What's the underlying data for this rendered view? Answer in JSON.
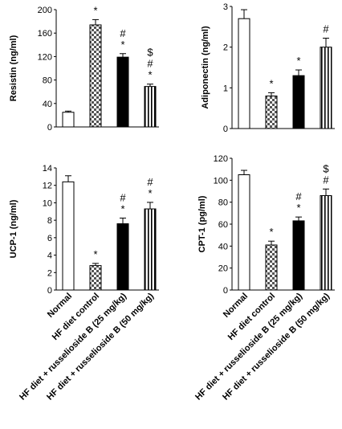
{
  "categories": [
    "Normal",
    "HF diet control",
    "HF diet + russelioside B (25 mg/kg)",
    "HF diet + russelioside B (50 mg/kg)"
  ],
  "legend_patterns": [
    "white",
    "checkered",
    "black",
    "vertical-stripes"
  ],
  "chart_data": [
    {
      "type": "bar",
      "title": "",
      "xlabel": "",
      "ylabel": "Resistin (ng/ml)",
      "ylim": [
        0,
        200
      ],
      "yticks": [
        0,
        40,
        80,
        120,
        160,
        200
      ],
      "categories": [
        "Normal",
        "HF diet control",
        "HF diet + russelioside B (25 mg/kg)",
        "HF diet + russelioside B (50 mg/kg)"
      ],
      "values": [
        25,
        174,
        119,
        69
      ],
      "errors": [
        2,
        9,
        6,
        4
      ],
      "significance": [
        [],
        [
          "*"
        ],
        [
          "#",
          "*"
        ],
        [
          "$",
          "#",
          "*"
        ]
      ]
    },
    {
      "type": "bar",
      "title": "",
      "xlabel": "",
      "ylabel": "Adiponectin (ng/ml)",
      "ylim": [
        0,
        3
      ],
      "yticks": [
        0,
        1,
        2,
        3
      ],
      "categories": [
        "Normal",
        "HF diet control",
        "HF diet + russelioside B (25 mg/kg)",
        "HF diet + russelioside B (50 mg/kg)"
      ],
      "values": [
        2.7,
        0.8,
        1.3,
        2.0
      ],
      "errors": [
        0.22,
        0.08,
        0.14,
        0.22
      ],
      "significance": [
        [],
        [
          "*"
        ],
        [
          "*"
        ],
        [
          "#"
        ]
      ]
    },
    {
      "type": "bar",
      "title": "",
      "xlabel": "",
      "ylabel": "UCP-1 (ng/ml)",
      "ylim": [
        0,
        14
      ],
      "yticks": [
        0,
        2,
        4,
        6,
        8,
        10,
        12,
        14
      ],
      "categories": [
        "Normal",
        "HF diet control",
        "HF diet + russelioside B (25 mg/kg)",
        "HF diet + russelioside B (50 mg/kg)"
      ],
      "values": [
        12.4,
        2.8,
        7.6,
        9.3
      ],
      "errors": [
        0.7,
        0.25,
        0.65,
        0.75
      ],
      "significance": [
        [],
        [
          "*"
        ],
        [
          "#",
          "*"
        ],
        [
          "#",
          "*"
        ]
      ]
    },
    {
      "type": "bar",
      "title": "",
      "xlabel": "",
      "ylabel": "CPT-1 (pg/ml)",
      "ylim": [
        0,
        120
      ],
      "yticks": [
        0,
        20,
        40,
        60,
        80,
        100,
        120
      ],
      "categories": [
        "Normal",
        "HF diet control",
        "HF diet + russelioside B (25 mg/kg)",
        "HF diet + russelioside B (50 mg/kg)"
      ],
      "values": [
        105,
        41,
        63,
        86
      ],
      "errors": [
        4,
        3.5,
        3.5,
        6
      ],
      "significance": [
        [],
        [
          "*"
        ],
        [
          "#",
          "*"
        ],
        [
          "$",
          "#"
        ]
      ]
    }
  ]
}
